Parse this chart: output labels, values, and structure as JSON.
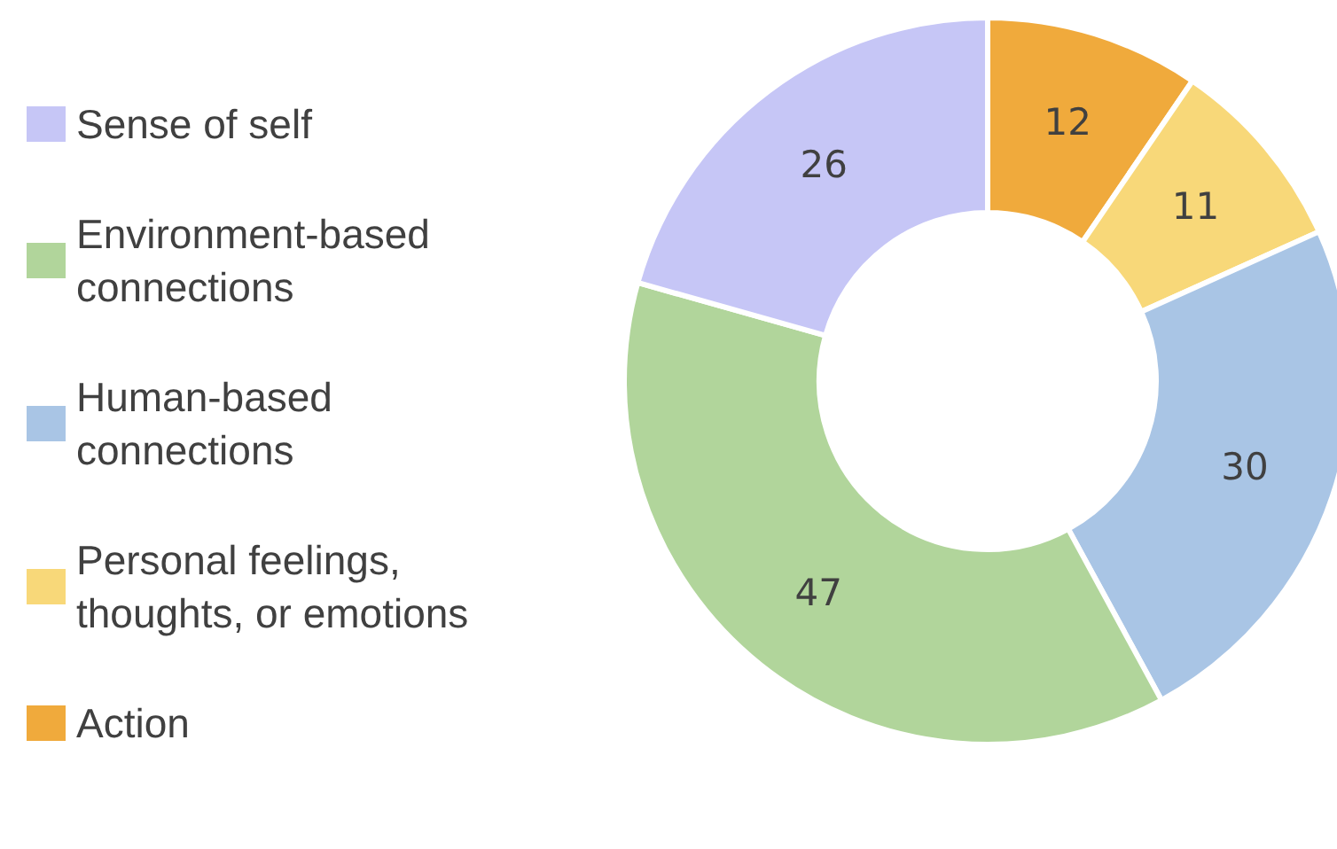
{
  "chart_data": {
    "type": "donut",
    "categories": [
      "Action",
      "Personal feelings, thoughts, or emotions",
      "Human-based connections",
      "Environment-based connections",
      "Sense of self"
    ],
    "values": [
      12,
      11,
      30,
      47,
      26
    ],
    "colors": [
      "#f0aa3c",
      "#f8d879",
      "#a9c5e5",
      "#b1d59b",
      "#c6c6f6"
    ],
    "data_labels": true,
    "legend": "left"
  }
}
